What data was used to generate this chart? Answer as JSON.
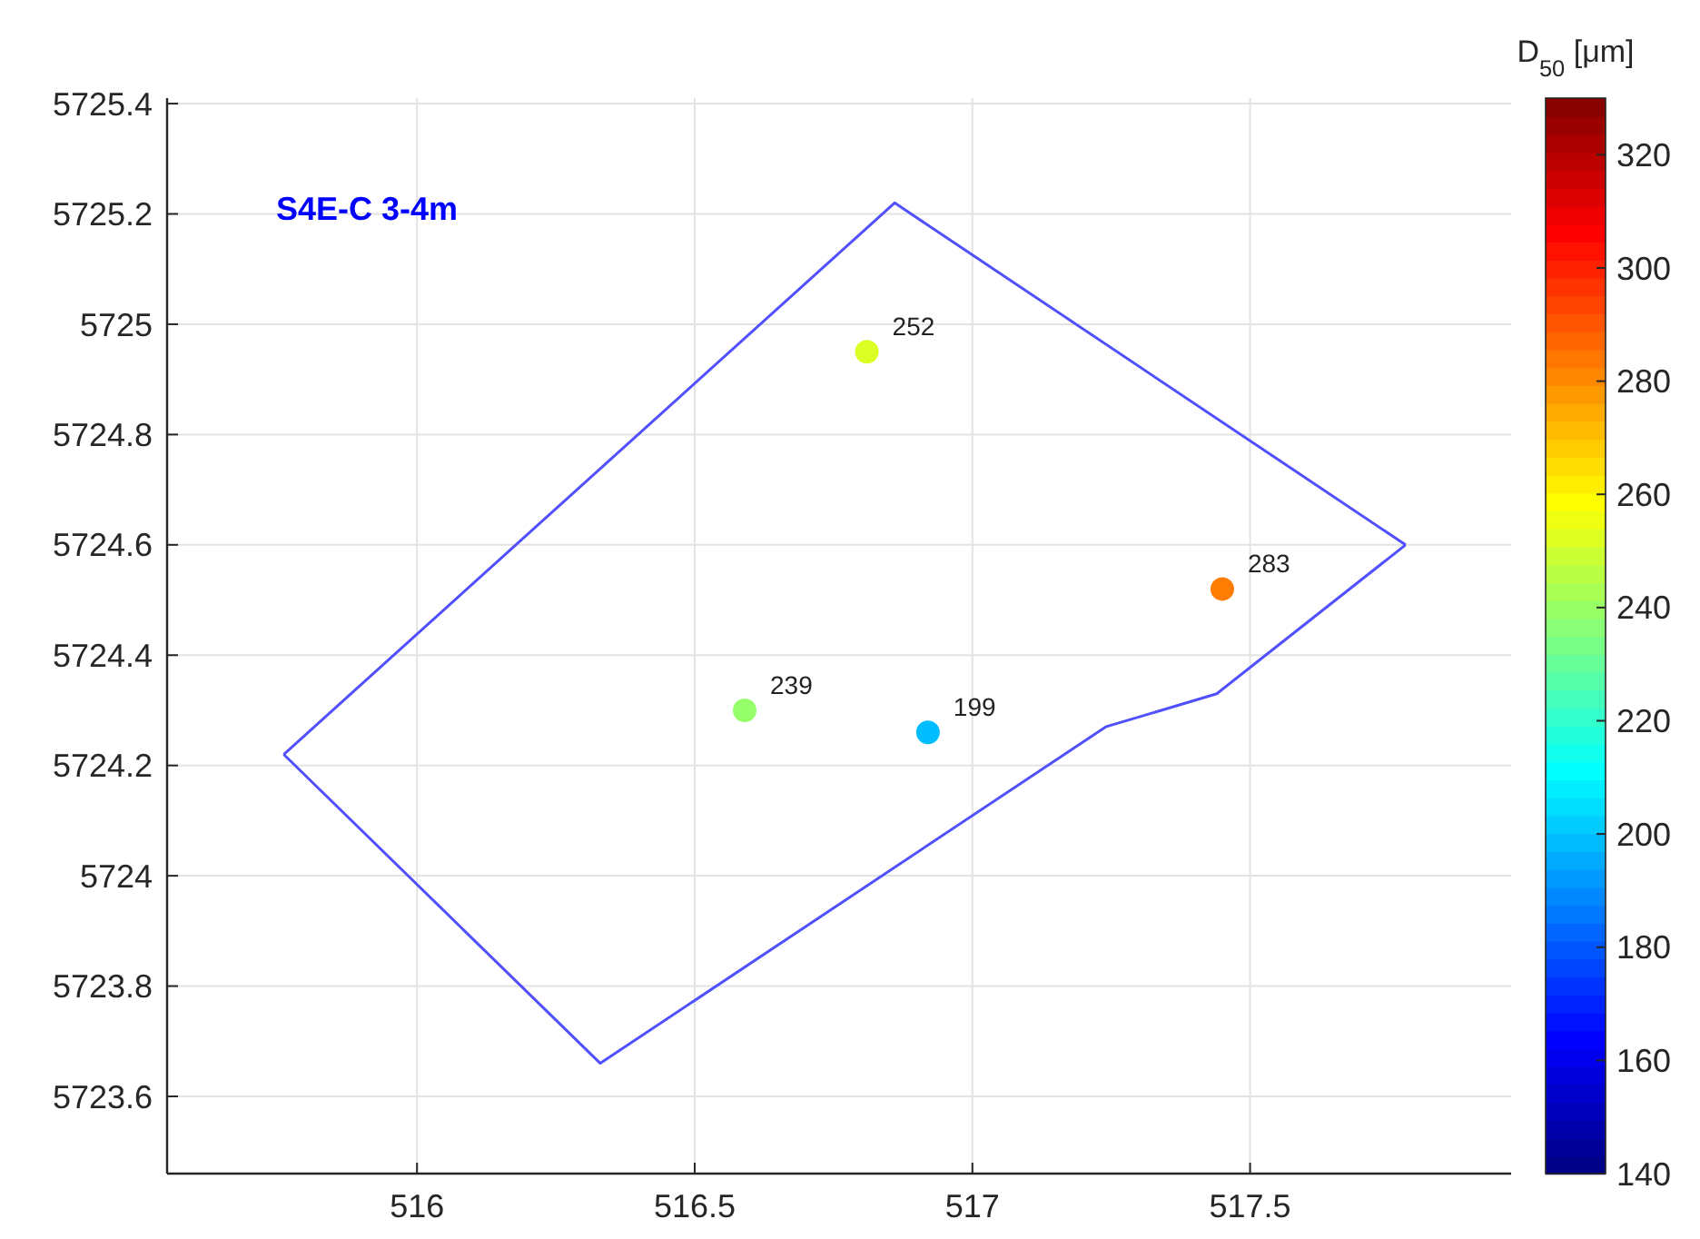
{
  "chart_data": {
    "type": "scatter",
    "xlim": [
      515.55,
      517.97
    ],
    "ylim": [
      5723.46,
      5725.41
    ],
    "xticks": [
      516,
      516.5,
      517,
      517.5
    ],
    "yticks": [
      5723.6,
      5723.8,
      5724,
      5724.2,
      5724.4,
      5724.6,
      5724.8,
      5725,
      5725.2,
      5725.4
    ],
    "grid": true,
    "clabel": "D$_{50}$ [μm]",
    "clim": [
      140,
      330
    ],
    "cticks": [
      140,
      160,
      180,
      200,
      220,
      240,
      260,
      280,
      300,
      320
    ],
    "annotations": [
      "S4E-C 3-4m",
      {
        "text": "252",
        "x": 516.81,
        "y": 5724.95
      },
      {
        "text": "283",
        "x": 517.45,
        "y": 5724.52
      },
      {
        "text": "239",
        "x": 516.59,
        "y": 5724.3
      },
      {
        "text": "199",
        "x": 516.92,
        "y": 5724.26
      }
    ],
    "series": [
      {
        "marker": "circle",
        "x": [
          516.81,
          517.45,
          516.59,
          516.92
        ],
        "values": [
          5724.95,
          5724.52,
          5724.3,
          5724.26
        ],
        "cvalues": [
          252,
          283,
          239,
          199
        ],
        "colors": [
          "#dbff24",
          "#ff7d00",
          "#95ff6a",
          "#00bdff"
        ]
      },
      {
        "type": "line",
        "color": "#5050ff",
        "marker": "none",
        "x": [
          515.76,
          516.86,
          517.78
        ],
        "values": [
          5724.22,
          5725.22,
          5724.6
        ]
      },
      {
        "type": "line",
        "color": "#5050ff",
        "marker": "none",
        "x": [
          515.76,
          516.33,
          517.24,
          517.44,
          517.78
        ],
        "values": [
          5724.22,
          5723.66,
          5724.27,
          5724.33,
          5724.6
        ]
      }
    ]
  }
}
